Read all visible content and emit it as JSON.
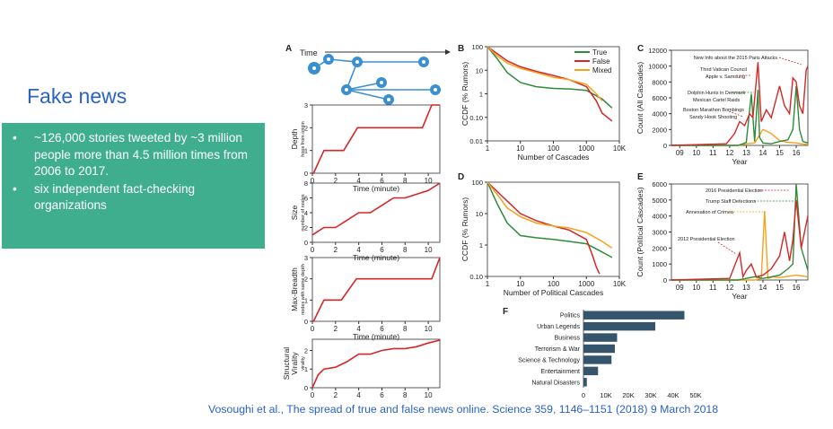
{
  "slide": {
    "title": "Fake news",
    "bullets": [
      "~126,000 stories tweeted by ~3 million people more than 4.5 million times from 2006 to 2017.",
      "six independent fact-checking organizations"
    ],
    "bullet_symbol": "•",
    "citation": "Vosoughi et al., The spread of true and false news online. Science   359, 1146–1151 (2018) 9 March 2018",
    "colors": {
      "title": "#2a62c9",
      "box": "#3fae8f",
      "true": "#2e8b3a",
      "false": "#d42727",
      "mixed": "#f5a21b",
      "bar": "#34556c"
    }
  },
  "chart_data": [
    {
      "panel": "A",
      "type": "diagram",
      "label": "Time",
      "node_icon": "twitter-bird-icon"
    },
    {
      "panel": "A",
      "type": "line",
      "ylabel": "Depth",
      "ysublabel": "hops from origin",
      "xlabel": "Time (minute)",
      "xticks": [
        0,
        2,
        4,
        6,
        8,
        10
      ],
      "yticks": [
        0,
        1,
        2,
        3
      ],
      "xlim": [
        0,
        11
      ],
      "ylim": [
        0,
        3
      ],
      "x": [
        0,
        0.1,
        1,
        2.7,
        2.7,
        3.9,
        3.9,
        9.5,
        9.5,
        10.3,
        10.3,
        11
      ],
      "y": [
        0,
        0,
        1,
        1,
        1,
        2,
        2,
        2,
        2,
        3,
        3,
        3
      ]
    },
    {
      "panel": "A",
      "type": "line",
      "ylabel": "Size",
      "ysublabel": "number of nodes",
      "xlabel": "Time (minute)",
      "xticks": [
        0,
        2,
        4,
        6,
        8,
        10
      ],
      "yticks": [
        0,
        2,
        4,
        6,
        8
      ],
      "xlim": [
        0,
        11
      ],
      "ylim": [
        0,
        8
      ],
      "x": [
        0,
        1,
        2,
        3,
        4,
        5,
        6,
        7,
        8,
        9,
        10,
        11
      ],
      "y": [
        1,
        2,
        2,
        3,
        4,
        4,
        5,
        6,
        6,
        6.5,
        7,
        8
      ]
    },
    {
      "panel": "A",
      "type": "line",
      "ylabel": "Max-Breadth",
      "ysublabel": "nodes with same depth",
      "xlabel": "Time (minute)",
      "xticks": [
        0,
        2,
        4,
        6,
        8,
        10
      ],
      "yticks": [
        0,
        1,
        2,
        3
      ],
      "xlim": [
        0,
        11
      ],
      "ylim": [
        0,
        3
      ],
      "x": [
        0,
        0.1,
        1,
        2.5,
        2.5,
        3.8,
        3.8,
        10.3,
        10.3,
        11
      ],
      "y": [
        0,
        0,
        1,
        1,
        1,
        2,
        2,
        2,
        2,
        3
      ]
    },
    {
      "panel": "A",
      "type": "line",
      "ylabel": "Structural Virality",
      "ysublabel": "virality",
      "xlabel": "",
      "xticks": [
        0,
        2,
        4,
        6,
        8,
        10
      ],
      "yticks": [
        0,
        1,
        2
      ],
      "xlim": [
        0,
        11
      ],
      "ylim": [
        0,
        2.6
      ],
      "x": [
        0,
        0.5,
        1,
        2,
        3,
        4,
        5,
        6,
        7,
        8,
        9,
        10,
        11
      ],
      "y": [
        0,
        0.7,
        1,
        1.1,
        1.4,
        1.8,
        1.8,
        2,
        2.1,
        2.1,
        2.2,
        2.4,
        2.55
      ]
    },
    {
      "panel": "B",
      "type": "line",
      "xlabel": "Number of Cascades",
      "ylabel": "CCDF (% Rumors)",
      "xscale": "log",
      "yscale": "log",
      "xlim": [
        1,
        10000
      ],
      "ylim": [
        0.01,
        100
      ],
      "xticks": [
        1,
        10,
        100,
        1000,
        10000
      ],
      "xticklabels": [
        "1",
        "10",
        "100",
        "1000",
        "10K"
      ],
      "yticks": [
        100,
        10,
        1,
        0.1,
        0.01
      ],
      "yticklabels": [
        "100",
        "10",
        "1",
        "0.10",
        "0.01"
      ],
      "legend": "top-right",
      "series": [
        {
          "name": "True",
          "x": [
            1,
            2,
            4,
            10,
            30,
            100,
            300,
            1000,
            3000,
            6000
          ],
          "y": [
            100,
            30,
            8,
            3,
            2,
            1.7,
            1.6,
            1.4,
            0.6,
            0.25
          ]
        },
        {
          "name": "False",
          "x": [
            1,
            2,
            4,
            10,
            30,
            100,
            300,
            1000,
            2000,
            3000,
            6000
          ],
          "y": [
            100,
            50,
            25,
            14,
            9,
            6,
            4,
            2,
            0.5,
            0.15,
            0.07
          ]
        },
        {
          "name": "Mixed",
          "x": [
            1,
            2,
            4,
            10,
            30,
            100,
            300,
            1000,
            2000,
            3000
          ],
          "y": [
            100,
            40,
            20,
            12,
            8,
            5,
            4,
            2.5,
            1,
            0.5
          ]
        }
      ]
    },
    {
      "panel": "C",
      "type": "line",
      "xlabel": "Year",
      "ylabel": "Count (All Cascades)",
      "xlim": [
        2008.5,
        2016.7
      ],
      "ylim": [
        0,
        12000
      ],
      "xticks": [
        2009,
        2010,
        2011,
        2012,
        2013,
        2014,
        2015,
        2016
      ],
      "xticklabels": [
        "09",
        "10",
        "11",
        "12",
        "13",
        "14",
        "15",
        "16"
      ],
      "yticks": [
        0,
        2000,
        4000,
        6000,
        8000,
        10000,
        12000
      ],
      "annotations": [
        "New Info about the 2015 Paris Attacks",
        "Third Vatican Council",
        "Apple v. Samsung",
        "Dolphin Hunts in Denmark",
        "Mexican Cartel Raids",
        "Boston Marathon Bombings",
        "Sandy Hook Shooting"
      ],
      "series": [
        {
          "name": "True",
          "x": [
            2008.5,
            2012.5,
            2012.8,
            2013.0,
            2013.3,
            2013.5,
            2013.7,
            2013.8,
            2014.0,
            2014.5,
            2015.0,
            2015.5,
            2015.8,
            2016.0,
            2016.2,
            2016.4,
            2016.7
          ],
          "y": [
            0,
            0,
            200,
            400,
            6500,
            500,
            7000,
            1000,
            300,
            200,
            500,
            700,
            2000,
            7500,
            2000,
            500,
            300
          ]
        },
        {
          "name": "False",
          "x": [
            2008.5,
            2011.8,
            2012.3,
            2012.6,
            2012.9,
            2013.2,
            2013.4,
            2013.7,
            2013.9,
            2014.2,
            2014.5,
            2015.0,
            2015.3,
            2015.6,
            2015.8,
            2016.0,
            2016.2,
            2016.4,
            2016.6,
            2016.7
          ],
          "y": [
            0,
            200,
            1500,
            3000,
            2500,
            4000,
            3500,
            10500,
            3000,
            4500,
            3500,
            7500,
            5000,
            4000,
            8500,
            8000,
            5000,
            4000,
            9500,
            10000
          ]
        },
        {
          "name": "Mixed",
          "x": [
            2008.5,
            2012.5,
            2013.0,
            2013.5,
            2014.0,
            2014.5,
            2015.0,
            2015.5,
            2016.0,
            2016.3,
            2016.7
          ],
          "y": [
            0,
            0,
            200,
            300,
            2000,
            1500,
            600,
            400,
            300,
            200,
            100
          ]
        }
      ]
    },
    {
      "panel": "D",
      "type": "line",
      "xlabel": "Number of Political Cascades",
      "ylabel": "CCDF (% Rumors)",
      "xscale": "log",
      "yscale": "log",
      "xlim": [
        1,
        10000
      ],
      "ylim": [
        0.1,
        100
      ],
      "xticks": [
        1,
        10,
        100,
        1000,
        10000
      ],
      "xticklabels": [
        "1",
        "10",
        "100",
        "1000",
        "10K"
      ],
      "yticks": [
        100,
        10,
        1,
        0.1
      ],
      "yticklabels": [
        "100",
        "10",
        "1",
        "0.10"
      ],
      "series": [
        {
          "name": "True",
          "x": [
            1,
            2,
            4,
            10,
            30,
            100,
            300,
            1000,
            3000,
            6000
          ],
          "y": [
            100,
            20,
            5,
            2,
            1.7,
            1.5,
            1.3,
            1.1,
            0.6,
            0.4
          ]
        },
        {
          "name": "False",
          "x": [
            1,
            2,
            4,
            10,
            30,
            100,
            300,
            1000,
            1500,
            2000,
            2500
          ],
          "y": [
            100,
            50,
            25,
            10,
            6,
            4,
            3,
            1.5,
            0.5,
            0.2,
            0.12
          ]
        },
        {
          "name": "Mixed",
          "x": [
            1,
            2,
            4,
            10,
            30,
            100,
            300,
            1000,
            3000,
            6000
          ],
          "y": [
            100,
            40,
            15,
            8,
            5,
            4,
            3.5,
            2.5,
            1.3,
            0.8
          ]
        }
      ]
    },
    {
      "panel": "E",
      "type": "line",
      "xlabel": "Year",
      "ylabel": "Count (Political Cascades)",
      "xlim": [
        2008.5,
        2016.7
      ],
      "ylim": [
        0,
        6000
      ],
      "xticks": [
        2009,
        2010,
        2011,
        2012,
        2013,
        2014,
        2015,
        2016
      ],
      "xticklabels": [
        "09",
        "10",
        "11",
        "12",
        "13",
        "14",
        "15",
        "16"
      ],
      "yticks": [
        0,
        1000,
        2000,
        3000,
        4000,
        5000,
        6000
      ],
      "annotations": [
        "2016 Presidential Election",
        "Trump Staff Defections",
        "Annexation of Crimea",
        "2012 Presidential Election"
      ],
      "series": [
        {
          "name": "True",
          "x": [
            2008.5,
            2012.5,
            2013.0,
            2013.5,
            2014.0,
            2014.5,
            2015.0,
            2015.5,
            2015.8,
            2016.0,
            2016.3,
            2016.7
          ],
          "y": [
            0,
            0,
            100,
            200,
            100,
            200,
            300,
            700,
            1000,
            6000,
            2000,
            600
          ]
        },
        {
          "name": "False",
          "x": [
            2008.5,
            2012.0,
            2012.6,
            2012.8,
            2013.0,
            2013.3,
            2013.6,
            2014.0,
            2014.5,
            2015.0,
            2015.3,
            2015.6,
            2015.8,
            2016.0,
            2016.3,
            2016.7
          ],
          "y": [
            0,
            100,
            1700,
            200,
            600,
            1000,
            200,
            300,
            700,
            1500,
            3000,
            1200,
            2500,
            5000,
            2000,
            4000
          ]
        },
        {
          "name": "Mixed",
          "x": [
            2008.5,
            2013.5,
            2013.9,
            2014.1,
            2014.3,
            2014.6,
            2015.0,
            2016.0,
            2016.7
          ],
          "y": [
            0,
            0,
            100,
            4300,
            100,
            200,
            150,
            300,
            200
          ]
        }
      ]
    },
    {
      "panel": "F",
      "type": "bar",
      "orientation": "horizontal",
      "categories": [
        "Politics",
        "Urban Legends",
        "Business",
        "Terrorism & War",
        "Science & Technology",
        "Entertainment",
        "Natural Disasters"
      ],
      "values": [
        45000,
        32000,
        15000,
        14000,
        12500,
        6500,
        1500
      ],
      "xlim": [
        0,
        50000
      ],
      "xticks": [
        0,
        10000,
        20000,
        30000,
        40000,
        50000
      ],
      "xticklabels": [
        "0",
        "10K",
        "20K",
        "30K",
        "40K",
        "50K"
      ]
    }
  ]
}
